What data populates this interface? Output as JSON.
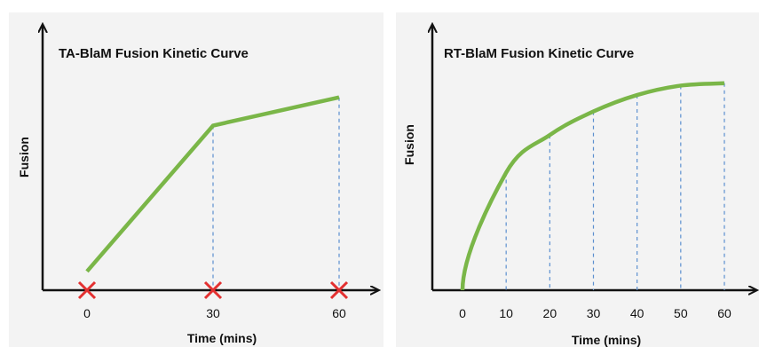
{
  "chart_data": [
    {
      "type": "line",
      "title": "TA-BlaM Fusion Kinetic Curve",
      "xlabel": "Time (mins)",
      "ylabel": "Fusion",
      "x_ticks": [
        "0",
        "30",
        "60"
      ],
      "series": [
        {
          "x": [
            0,
            30,
            60
          ],
          "y": [
            0.08,
            0.7,
            0.82
          ],
          "color": "#7ab648"
        }
      ],
      "sample_points_marked": [
        0,
        30,
        60
      ],
      "marker": "x",
      "marker_color": "#e33030",
      "dashed_guides_at": [
        30,
        60
      ],
      "xlim": [
        0,
        60
      ],
      "ylim": [
        0,
        1
      ],
      "grid": false,
      "legend": "none"
    },
    {
      "type": "line",
      "title": "RT-BlaM Fusion Kinetic Curve",
      "xlabel": "Time (mins)",
      "ylabel": "Fusion",
      "x_ticks": [
        "0",
        "10",
        "20",
        "30",
        "40",
        "50",
        "60"
      ],
      "series": [
        {
          "x": [
            0,
            10,
            20,
            30,
            40,
            50,
            60
          ],
          "y": [
            0,
            0.5,
            0.66,
            0.76,
            0.83,
            0.87,
            0.88
          ],
          "color": "#7ab648"
        }
      ],
      "dashed_guides_at": [
        10,
        20,
        30,
        40,
        50,
        60
      ],
      "xlim": [
        0,
        60
      ],
      "ylim": [
        0,
        1
      ],
      "grid": false,
      "legend": "none"
    }
  ]
}
